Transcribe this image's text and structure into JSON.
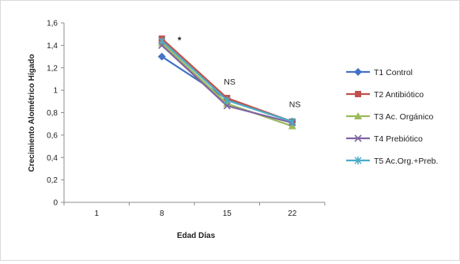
{
  "chart_data": {
    "type": "line",
    "xlabel": "Edad Días",
    "ylabel": "Crecimiento Alométrico Hígado",
    "categories": [
      "1",
      "8",
      "15",
      "22"
    ],
    "ylim": [
      0,
      1.6
    ],
    "yticks": [
      "0",
      "0,2",
      "0,4",
      "0,6",
      "0,8",
      "1",
      "1,2",
      "1,4",
      "1,6"
    ],
    "grid": false,
    "legend_position": "right",
    "series": [
      {
        "name": "T1 Control",
        "color": "#4472C4",
        "marker": "diamond",
        "values": [
          null,
          1.3,
          0.92,
          0.72
        ]
      },
      {
        "name": "T2 Antibiótico",
        "color": "#C0504D",
        "marker": "square",
        "values": [
          null,
          1.46,
          0.93,
          0.72
        ]
      },
      {
        "name": "T3 Ac. Orgánico",
        "color": "#9BBB59",
        "marker": "triangle",
        "values": [
          null,
          1.42,
          0.88,
          0.68
        ]
      },
      {
        "name": "T4 Prebiótico",
        "color": "#8064A2",
        "marker": "x",
        "values": [
          null,
          1.4,
          0.86,
          0.71
        ]
      },
      {
        "name": "T5 Ac.Org.+Preb.",
        "color": "#4BACC6",
        "marker": "star",
        "values": [
          null,
          1.44,
          0.91,
          0.72
        ]
      }
    ],
    "annotations": [
      {
        "text": "*",
        "x": "8",
        "y": 1.46
      },
      {
        "text": "NS",
        "x": "15",
        "y": 1.05
      },
      {
        "text": "NS",
        "x": "22",
        "y": 0.85
      }
    ]
  }
}
